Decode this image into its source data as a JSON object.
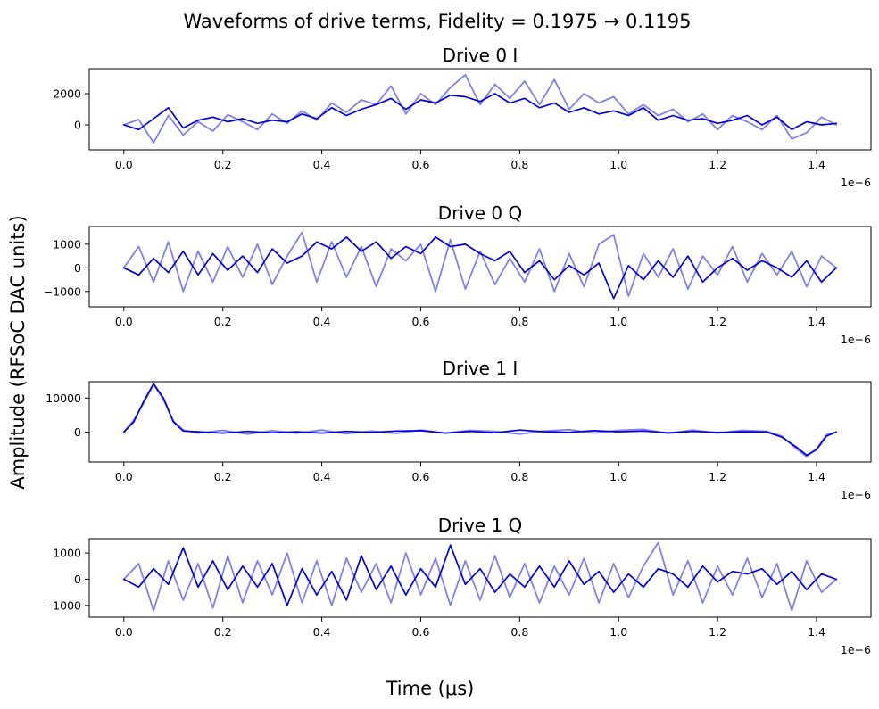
{
  "figure": {
    "title": "Waveforms of drive terms, Fidelity = 0.1975 → 0.1195",
    "xlabel": "Time (μs)",
    "ylabel": "Amplitude (RFSoC DAC units)"
  },
  "chart_data": [
    {
      "type": "line",
      "title": "Drive 0 I",
      "x_offset_label": "1e−6",
      "xlim": [
        -0.07,
        1.51
      ],
      "ylim": [
        -1600,
        3600
      ],
      "xticks": [
        0.0,
        0.2,
        0.4,
        0.6,
        0.8,
        1.0,
        1.2,
        1.4
      ],
      "xtick_labels": [
        "0.0",
        "0.2",
        "0.4",
        "0.6",
        "0.8",
        "1.0",
        "1.2",
        "1.4"
      ],
      "yticks": [
        0,
        2000
      ],
      "ytick_labels": [
        "0",
        "2000"
      ],
      "x": [
        0.0,
        0.03,
        0.06,
        0.09,
        0.12,
        0.15,
        0.18,
        0.21,
        0.24,
        0.27,
        0.3,
        0.33,
        0.36,
        0.39,
        0.42,
        0.45,
        0.48,
        0.51,
        0.54,
        0.57,
        0.6,
        0.63,
        0.66,
        0.69,
        0.72,
        0.75,
        0.78,
        0.81,
        0.84,
        0.87,
        0.9,
        0.93,
        0.96,
        0.99,
        1.02,
        1.05,
        1.08,
        1.11,
        1.14,
        1.17,
        1.2,
        1.23,
        1.26,
        1.29,
        1.32,
        1.35,
        1.38,
        1.41,
        1.44
      ],
      "series": [
        {
          "color": "#8080ee",
          "values": [
            0,
            350,
            -1150,
            600,
            -650,
            200,
            -400,
            650,
            200,
            -300,
            700,
            100,
            900,
            300,
            1400,
            800,
            1600,
            1300,
            2500,
            700,
            2000,
            1300,
            2400,
            3200,
            1300,
            2600,
            1700,
            2800,
            1300,
            2900,
            1000,
            2000,
            1400,
            1800,
            700,
            1300,
            600,
            1000,
            200,
            700,
            -300,
            600,
            200,
            -300,
            600,
            -900,
            -500,
            500,
            0
          ]
        },
        {
          "color": "#0000e0",
          "values": [
            0,
            -300,
            400,
            1100,
            -200,
            300,
            500,
            200,
            400,
            100,
            300,
            200,
            700,
            400,
            1100,
            600,
            1000,
            1300,
            1700,
            1000,
            1600,
            1400,
            1900,
            1800,
            1500,
            2000,
            1400,
            1700,
            1100,
            1400,
            800,
            1100,
            700,
            900,
            600,
            1100,
            300,
            600,
            300,
            400,
            100,
            300,
            600,
            0,
            500,
            -300,
            200,
            0,
            100
          ]
        }
      ]
    },
    {
      "type": "line",
      "title": "Drive 0 Q",
      "x_offset_label": "1e−6",
      "xlim": [
        -0.07,
        1.51
      ],
      "ylim": [
        -1650,
        1750
      ],
      "xticks": [
        0.0,
        0.2,
        0.4,
        0.6,
        0.8,
        1.0,
        1.2,
        1.4
      ],
      "xtick_labels": [
        "0.0",
        "0.2",
        "0.4",
        "0.6",
        "0.8",
        "1.0",
        "1.2",
        "1.4"
      ],
      "yticks": [
        -1000,
        0,
        1000
      ],
      "ytick_labels": [
        "−1000",
        "0",
        "1000"
      ],
      "x": [
        0.0,
        0.03,
        0.06,
        0.09,
        0.12,
        0.15,
        0.18,
        0.21,
        0.24,
        0.27,
        0.3,
        0.33,
        0.36,
        0.39,
        0.42,
        0.45,
        0.48,
        0.51,
        0.54,
        0.57,
        0.6,
        0.63,
        0.66,
        0.69,
        0.72,
        0.75,
        0.78,
        0.81,
        0.84,
        0.87,
        0.9,
        0.93,
        0.96,
        0.99,
        1.02,
        1.05,
        1.08,
        1.11,
        1.14,
        1.17,
        1.2,
        1.23,
        1.26,
        1.29,
        1.32,
        1.35,
        1.38,
        1.41,
        1.44
      ],
      "series": [
        {
          "color": "#8080ee",
          "values": [
            0,
            900,
            -600,
            1100,
            -1000,
            700,
            -600,
            900,
            -400,
            1000,
            -700,
            500,
            1500,
            -600,
            1100,
            -400,
            900,
            -800,
            800,
            300,
            1000,
            -1000,
            1200,
            -900,
            700,
            -700,
            400,
            -600,
            800,
            -1000,
            600,
            -800,
            1000,
            1400,
            -1200,
            600,
            -400,
            800,
            -900,
            500,
            -300,
            900,
            -600,
            600,
            -300,
            700,
            -800,
            500,
            0
          ]
        },
        {
          "color": "#0000e0",
          "values": [
            0,
            -300,
            400,
            -200,
            700,
            -300,
            600,
            -100,
            500,
            -200,
            800,
            200,
            500,
            1100,
            800,
            1300,
            700,
            1100,
            400,
            900,
            600,
            1300,
            900,
            1000,
            600,
            300,
            700,
            -200,
            300,
            -500,
            100,
            -300,
            200,
            -1300,
            100,
            -500,
            300,
            -400,
            500,
            -600,
            0,
            400,
            -100,
            300,
            0,
            -400,
            300,
            -600,
            0
          ]
        }
      ]
    },
    {
      "type": "line",
      "title": "Drive 1 I",
      "x_offset_label": "1e−6",
      "xlim": [
        -0.07,
        1.51
      ],
      "ylim": [
        -8800,
        14800
      ],
      "xticks": [
        0.0,
        0.2,
        0.4,
        0.6,
        0.8,
        1.0,
        1.2,
        1.4
      ],
      "xtick_labels": [
        "0.0",
        "0.2",
        "0.4",
        "0.6",
        "0.8",
        "1.0",
        "1.2",
        "1.4"
      ],
      "yticks": [
        0,
        10000
      ],
      "ytick_labels": [
        "0",
        "10000"
      ],
      "x": [
        0.0,
        0.02,
        0.04,
        0.06,
        0.08,
        0.1,
        0.12,
        0.15,
        0.2,
        0.25,
        0.3,
        0.35,
        0.4,
        0.45,
        0.5,
        0.55,
        0.6,
        0.65,
        0.7,
        0.75,
        0.8,
        0.85,
        0.9,
        0.95,
        1.0,
        1.05,
        1.1,
        1.15,
        1.2,
        1.25,
        1.3,
        1.33,
        1.36,
        1.38,
        1.4,
        1.42,
        1.44
      ],
      "series": [
        {
          "color": "#8080ee",
          "values": [
            0,
            3500,
            8500,
            14000,
            9500,
            3200,
            600,
            -300,
            500,
            -600,
            400,
            -300,
            600,
            -500,
            300,
            -400,
            600,
            -300,
            500,
            200,
            -600,
            300,
            700,
            -300,
            500,
            800,
            -400,
            600,
            -300,
            500,
            200,
            -1200,
            -5000,
            -7200,
            -5000,
            -800,
            0
          ]
        },
        {
          "color": "#0000e0",
          "values": [
            0,
            3000,
            9000,
            14200,
            10000,
            3000,
            300,
            100,
            -300,
            200,
            -200,
            100,
            -300,
            200,
            -100,
            300,
            400,
            -300,
            200,
            -200,
            600,
            100,
            -100,
            400,
            100,
            300,
            -200,
            200,
            -100,
            100,
            0,
            -1500,
            -4500,
            -6800,
            -5200,
            -1200,
            0
          ]
        }
      ]
    },
    {
      "type": "line",
      "title": "Drive 1 Q",
      "x_offset_label": "1e−6",
      "xlim": [
        -0.07,
        1.51
      ],
      "ylim": [
        -1450,
        1550
      ],
      "xticks": [
        0.0,
        0.2,
        0.4,
        0.6,
        0.8,
        1.0,
        1.2,
        1.4
      ],
      "xtick_labels": [
        "0.0",
        "0.2",
        "0.4",
        "0.6",
        "0.8",
        "1.0",
        "1.2",
        "1.4"
      ],
      "yticks": [
        -1000,
        0,
        1000
      ],
      "ytick_labels": [
        "−1000",
        "0",
        "1000"
      ],
      "x": [
        0.0,
        0.03,
        0.06,
        0.09,
        0.12,
        0.15,
        0.18,
        0.21,
        0.24,
        0.27,
        0.3,
        0.33,
        0.36,
        0.39,
        0.42,
        0.45,
        0.48,
        0.51,
        0.54,
        0.57,
        0.6,
        0.63,
        0.66,
        0.69,
        0.72,
        0.75,
        0.78,
        0.81,
        0.84,
        0.87,
        0.9,
        0.93,
        0.96,
        0.99,
        1.02,
        1.05,
        1.08,
        1.11,
        1.14,
        1.17,
        1.2,
        1.23,
        1.26,
        1.29,
        1.32,
        1.35,
        1.38,
        1.41,
        1.44
      ],
      "series": [
        {
          "color": "#8080ee",
          "values": [
            0,
            600,
            -1200,
            700,
            -800,
            600,
            -1100,
            900,
            -900,
            700,
            -600,
            1000,
            -900,
            700,
            -1000,
            800,
            -500,
            600,
            -900,
            1000,
            -600,
            800,
            -1000,
            700,
            -800,
            900,
            -700,
            600,
            -900,
            500,
            -600,
            800,
            -900,
            600,
            -700,
            500,
            1400,
            -600,
            700,
            -900,
            500,
            -600,
            800,
            -700,
            600,
            -1200,
            700,
            -500,
            0
          ]
        },
        {
          "color": "#0000e0",
          "values": [
            0,
            -300,
            400,
            -200,
            1200,
            -300,
            700,
            -400,
            500,
            -300,
            600,
            -1000,
            400,
            -600,
            300,
            -800,
            900,
            -400,
            500,
            -600,
            400,
            -300,
            1300,
            -200,
            400,
            -500,
            200,
            -300,
            500,
            -300,
            700,
            -200,
            300,
            -500,
            200,
            -300,
            400,
            200,
            -300,
            500,
            -100,
            300,
            200,
            400,
            -200,
            300,
            -400,
            200,
            0
          ]
        }
      ]
    }
  ]
}
